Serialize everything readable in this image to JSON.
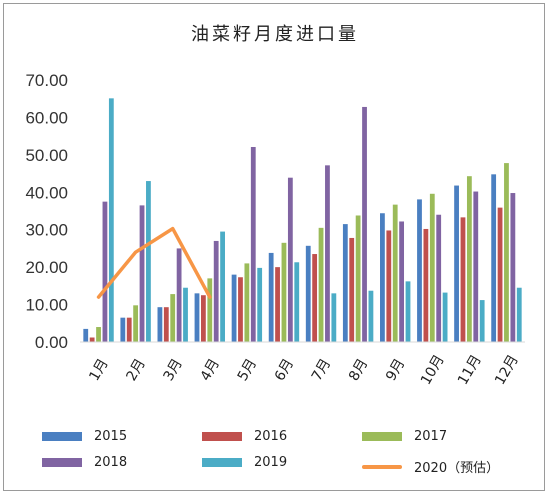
{
  "chart_data": {
    "type": "bar",
    "title": "油菜籽月度进口量",
    "categories": [
      "1月",
      "2月",
      "3月",
      "4月",
      "5月",
      "6月",
      "7月",
      "8月",
      "9月",
      "10月",
      "11月",
      "12月"
    ],
    "ylim": [
      0,
      70
    ],
    "yticks": [
      "0.00",
      "10.00",
      "20.00",
      "30.00",
      "40.00",
      "50.00",
      "60.00",
      "70.00"
    ],
    "series": [
      {
        "name": "2015",
        "color": "#4a7fc1",
        "values": [
          3.5,
          6.5,
          9.3,
          13.0,
          18.0,
          23.8,
          25.7,
          31.5,
          34.4,
          38.1,
          41.8,
          44.8
        ]
      },
      {
        "name": "2016",
        "color": "#c0504d",
        "values": [
          1.2,
          6.5,
          9.3,
          12.5,
          17.3,
          20.0,
          23.5,
          27.8,
          29.8,
          30.2,
          33.3,
          35.9
        ]
      },
      {
        "name": "2017",
        "color": "#9bbb59",
        "values": [
          4.0,
          9.8,
          12.8,
          17.0,
          21.0,
          26.5,
          30.5,
          33.8,
          36.7,
          39.6,
          44.3,
          47.8
        ]
      },
      {
        "name": "2018",
        "color": "#8064a2",
        "values": [
          37.5,
          36.5,
          25.0,
          27.0,
          52.1,
          43.9,
          47.2,
          62.8,
          32.2,
          34.0,
          40.2,
          39.8
        ]
      },
      {
        "name": "2019",
        "color": "#4bacc6",
        "values": [
          65.1,
          43.0,
          14.5,
          29.5,
          19.8,
          21.3,
          13.0,
          13.7,
          16.2,
          13.2,
          11.2,
          14.5
        ]
      }
    ],
    "line_series": {
      "name": "2020（预估）",
      "color": "#f79646",
      "categories_count": 4,
      "values": [
        12.0,
        24.0,
        30.3,
        12.0
      ]
    },
    "legend_position": "bottom",
    "grid": false
  }
}
